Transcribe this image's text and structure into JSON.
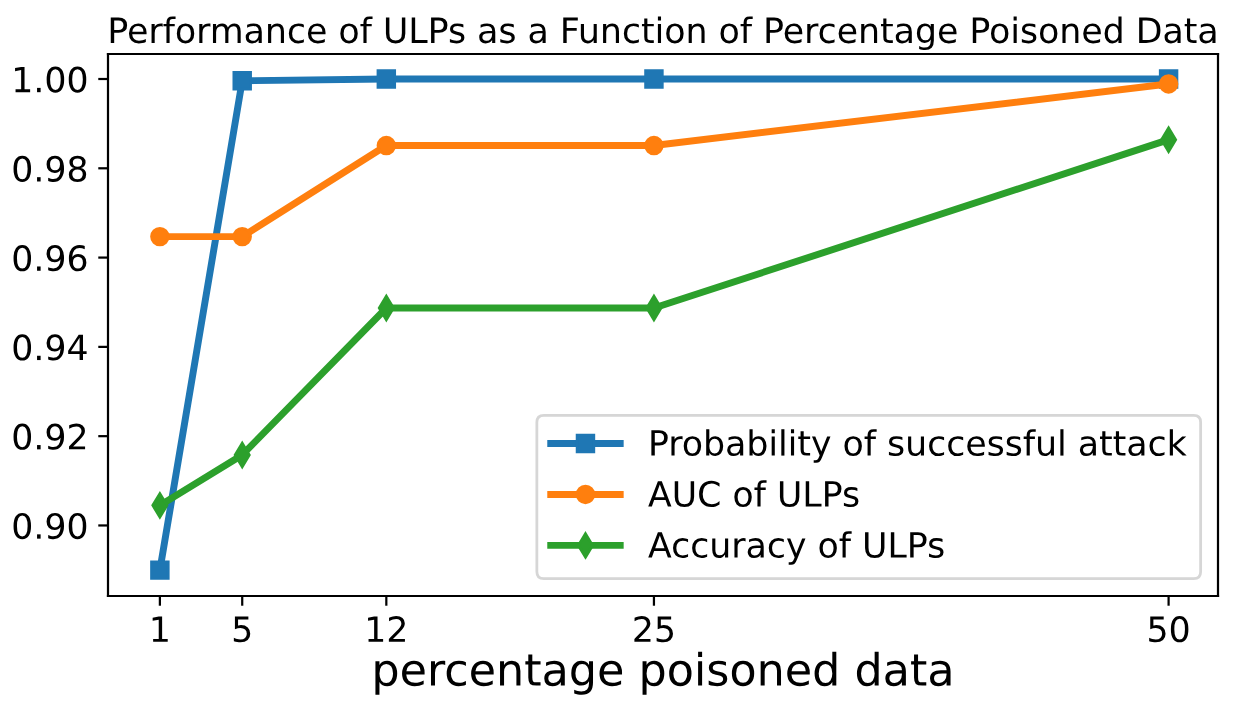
{
  "chart_data": {
    "type": "line",
    "title": "Performance of ULPs as a Function of Percentage Poisoned Data",
    "xlabel": "percentage poisoned data",
    "x": [
      1,
      5,
      12,
      25,
      50
    ],
    "series": [
      {
        "name": "Probability of successful attack",
        "color": "#1f77b4",
        "marker": "square",
        "values": [
          0.89,
          0.9996,
          1.0,
          1.0,
          1.0
        ]
      },
      {
        "name": "AUC of ULPs",
        "color": "#ff7f0e",
        "marker": "circle",
        "values": [
          0.9647,
          0.9647,
          0.9851,
          0.9851,
          0.9989
        ]
      },
      {
        "name": "Accuracy of ULPs",
        "color": "#2ca02c",
        "marker": "diamond",
        "values": [
          0.9045,
          0.9158,
          0.9487,
          0.9487,
          0.9864
        ]
      }
    ],
    "xlim": [
      -1.52,
      52.4
    ],
    "xticks": [
      1,
      5,
      12,
      25,
      50
    ],
    "ylim": [
      0.8842,
      1.0056
    ],
    "yticks": [
      {
        "value": 0.9,
        "label": "0.90"
      },
      {
        "value": 0.92,
        "label": "0.92"
      },
      {
        "value": 0.94,
        "label": "0.94"
      },
      {
        "value": 0.96,
        "label": "0.96"
      },
      {
        "value": 0.98,
        "label": "0.98"
      },
      {
        "value": 1.0,
        "label": "1.00"
      }
    ],
    "legend": "lower right",
    "grid": false,
    "line_style": "solid"
  }
}
